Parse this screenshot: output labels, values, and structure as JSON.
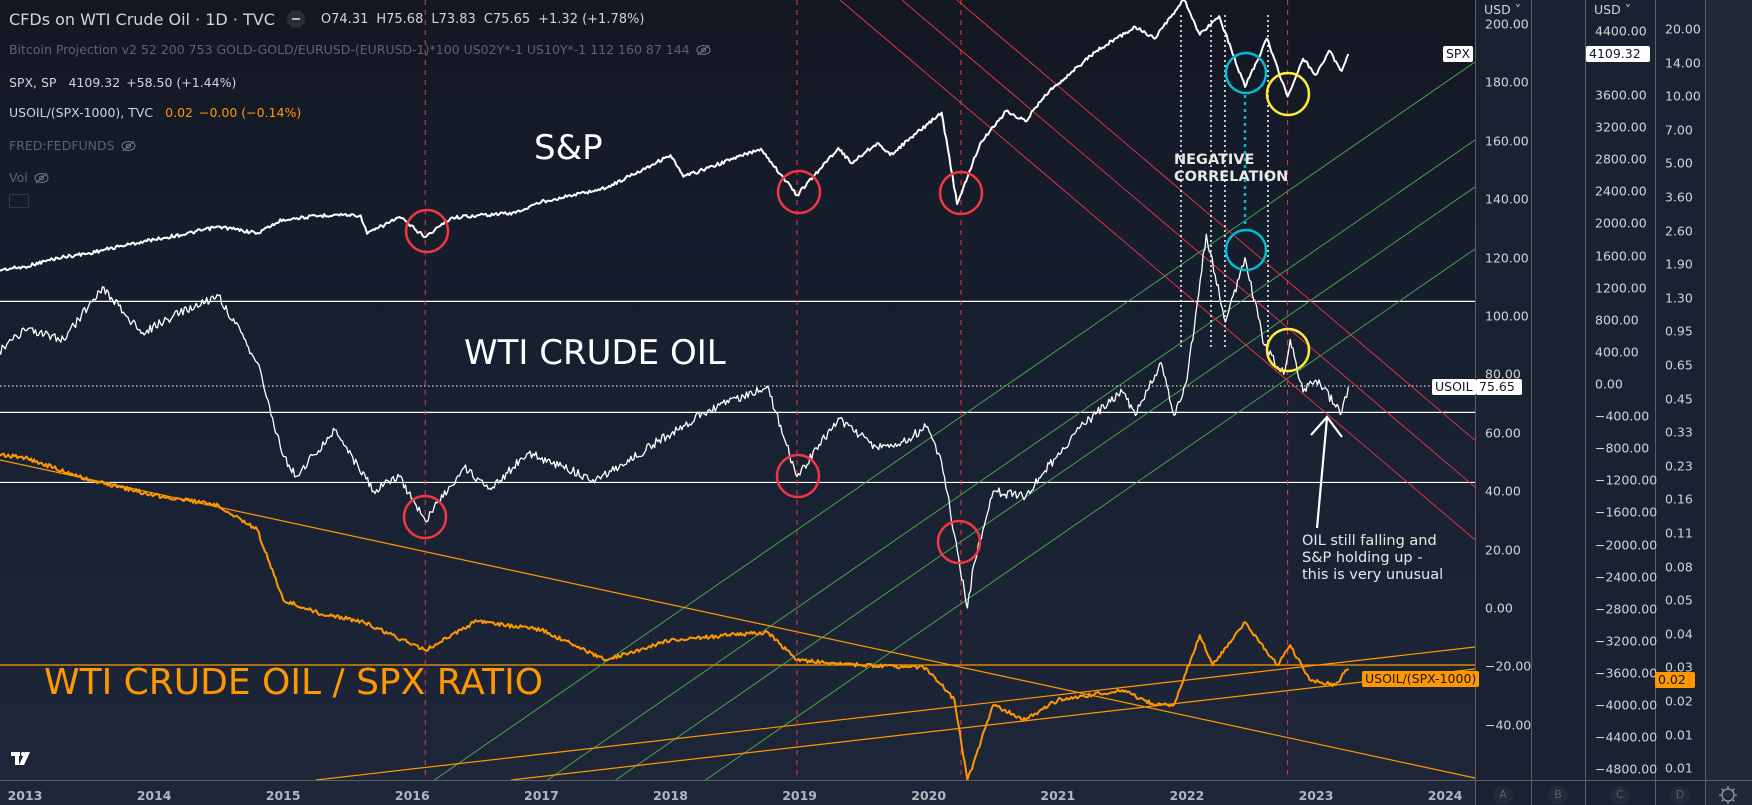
{
  "legend": {
    "title": "CFDs on WTI Crude Oil · 1D · TVC",
    "ohlc": {
      "open": "O74.31",
      "high": "H75.68",
      "low": "L73.83",
      "close": "C75.65",
      "change": "+1.32 (+1.78%)"
    },
    "indicator": "Bitcoin Projection v2 52 200 753 GOLD-GOLD/EURUSD-(EURUSD-1)*100 US02Y*-1 US10Y*-1 112 160 87 144",
    "spx": {
      "name": "SPX, SP",
      "value": "4109.32",
      "change": "+58.50 (+1.44%)"
    },
    "ratio": {
      "name": "USOIL/(SPX-1000), TVC",
      "value": "0.02",
      "change": "−0.00 (−0.14%)"
    },
    "fedfunds": "FRED:FEDFUNDS",
    "vol": "Vol"
  },
  "annotations": {
    "sp_label": "S&P",
    "oil_label": "WTI CRUDE OIL",
    "ratio_label": "WTI CRUDE OIL / SPX RATIO",
    "negative_correlation": [
      "NEGATIVE",
      "CORRELATION"
    ],
    "note": [
      "OIL still falling and",
      "S&P holding up -",
      "this is very unusual"
    ]
  },
  "price_labels": {
    "spx_tag": "SPX",
    "spx_value": "4109.32",
    "usoil_tag": "USOIL",
    "usoil_value": "75.65",
    "ratio_tag": "USOIL/(SPX-1000)",
    "ratio_value": "0.02"
  },
  "axes": {
    "currency": "USD",
    "a_ticks": [
      "200.00",
      "180.00",
      "160.00",
      "140.00",
      "120.00",
      "100.00",
      "80.00",
      "60.00",
      "40.00",
      "20.00",
      "0.00",
      "−20.00",
      "−40.00"
    ],
    "a_values": [
      200,
      180,
      160,
      140,
      120,
      100,
      80,
      60,
      40,
      20,
      0,
      -20,
      -40
    ],
    "c_ticks": [
      "4400.00",
      "3600.00",
      "3200.00",
      "2800.00",
      "2400.00",
      "2000.00",
      "1600.00",
      "1200.00",
      "800.00",
      "400.00",
      "0.00",
      "−400.00",
      "−800.00",
      "−1200.00",
      "−1600.00",
      "−2000.00",
      "−2400.00",
      "−2800.00",
      "−3200.00",
      "−3600.00",
      "−4000.00",
      "−4400.00",
      "−4800.00"
    ],
    "c_values": [
      4400,
      3600,
      3200,
      2800,
      2400,
      2000,
      1600,
      1200,
      800,
      400,
      0,
      -400,
      -800,
      -1200,
      -1600,
      -2000,
      -2400,
      -2800,
      -3200,
      -3600,
      -4000,
      -4400,
      -4800
    ],
    "d_ticks": [
      "20.00",
      "14.00",
      "10.00",
      "7.00",
      "5.00",
      "3.60",
      "2.60",
      "1.90",
      "1.30",
      "0.95",
      "0.65",
      "0.45",
      "0.33",
      "0.23",
      "0.16",
      "0.11",
      "0.08",
      "0.05",
      "0.04",
      "0.03",
      "0.02",
      "0.01",
      "0.01"
    ],
    "years": [
      "2013",
      "2014",
      "2015",
      "2016",
      "2017",
      "2018",
      "2019",
      "2020",
      "2021",
      "2022",
      "2023",
      "2024"
    ],
    "scale_letters": [
      "A",
      "B",
      "C",
      "D"
    ]
  },
  "colors": {
    "spx": "#ffffff",
    "oil": "#ffffff",
    "ratio": "#ff9800",
    "circle_red": "#f23645",
    "circle_cyan": "#00bcd4",
    "circle_yellow": "#ffeb3b",
    "trend_green": "#4caf50",
    "trend_red": "#f23645"
  },
  "chart_data": {
    "type": "line",
    "title": "CFDs on WTI Crude Oil · 1D · TVC",
    "x_range": [
      2012.8,
      2024.2
    ],
    "series": [
      {
        "name": "SPX",
        "axis": "C",
        "points": [
          [
            2012.8,
            1420
          ],
          [
            2013.0,
            1460
          ],
          [
            2013.25,
            1570
          ],
          [
            2013.5,
            1630
          ],
          [
            2013.75,
            1720
          ],
          [
            2014.0,
            1800
          ],
          [
            2014.25,
            1870
          ],
          [
            2014.5,
            1960
          ],
          [
            2014.8,
            1880
          ],
          [
            2015.0,
            2050
          ],
          [
            2015.4,
            2110
          ],
          [
            2015.6,
            2100
          ],
          [
            2015.65,
            1870
          ],
          [
            2015.9,
            2080
          ],
          [
            2016.1,
            1830
          ],
          [
            2016.3,
            2070
          ],
          [
            2016.5,
            2100
          ],
          [
            2016.8,
            2130
          ],
          [
            2017.0,
            2270
          ],
          [
            2017.5,
            2440
          ],
          [
            2018.0,
            2850
          ],
          [
            2018.1,
            2580
          ],
          [
            2018.7,
            2930
          ],
          [
            2018.98,
            2350
          ],
          [
            2019.3,
            2940
          ],
          [
            2019.4,
            2750
          ],
          [
            2019.6,
            3000
          ],
          [
            2019.7,
            2850
          ],
          [
            2020.1,
            3380
          ],
          [
            2020.22,
            2240
          ],
          [
            2020.4,
            3000
          ],
          [
            2020.6,
            3400
          ],
          [
            2020.75,
            3270
          ],
          [
            2020.9,
            3600
          ],
          [
            2021.3,
            4150
          ],
          [
            2021.6,
            4450
          ],
          [
            2021.75,
            4300
          ],
          [
            2021.98,
            4790
          ],
          [
            2022.1,
            4350
          ],
          [
            2022.25,
            4580
          ],
          [
            2022.45,
            3700
          ],
          [
            2022.62,
            4300
          ],
          [
            2022.78,
            3580
          ],
          [
            2022.9,
            4050
          ],
          [
            2023.0,
            3850
          ],
          [
            2023.1,
            4150
          ],
          [
            2023.2,
            3900
          ],
          [
            2023.25,
            4109.32
          ]
        ]
      },
      {
        "name": "USOIL",
        "axis": "A",
        "points": [
          [
            2012.8,
            88
          ],
          [
            2013.0,
            95
          ],
          [
            2013.3,
            92
          ],
          [
            2013.6,
            110
          ],
          [
            2013.9,
            94
          ],
          [
            2014.2,
            101
          ],
          [
            2014.5,
            107
          ],
          [
            2014.8,
            84
          ],
          [
            2015.0,
            52
          ],
          [
            2015.1,
            45
          ],
          [
            2015.4,
            61
          ],
          [
            2015.7,
            40
          ],
          [
            2015.9,
            45
          ],
          [
            2016.1,
            30
          ],
          [
            2016.4,
            48
          ],
          [
            2016.6,
            41
          ],
          [
            2016.9,
            53
          ],
          [
            2017.4,
            44
          ],
          [
            2017.6,
            48
          ],
          [
            2017.9,
            57
          ],
          [
            2018.3,
            68
          ],
          [
            2018.75,
            76
          ],
          [
            2018.98,
            45
          ],
          [
            2019.3,
            65
          ],
          [
            2019.6,
            55
          ],
          [
            2019.8,
            57
          ],
          [
            2019.98,
            62
          ],
          [
            2020.1,
            50
          ],
          [
            2020.2,
            25
          ],
          [
            2020.3,
            0
          ],
          [
            2020.35,
            15
          ],
          [
            2020.5,
            40
          ],
          [
            2020.75,
            38
          ],
          [
            2020.9,
            47
          ],
          [
            2021.2,
            63
          ],
          [
            2021.5,
            74
          ],
          [
            2021.6,
            66
          ],
          [
            2021.8,
            84
          ],
          [
            2021.9,
            66
          ],
          [
            2022.0,
            78
          ],
          [
            2022.15,
            128
          ],
          [
            2022.3,
            98
          ],
          [
            2022.45,
            120
          ],
          [
            2022.6,
            90
          ],
          [
            2022.75,
            80
          ],
          [
            2022.8,
            92
          ],
          [
            2022.9,
            74
          ],
          [
            2023.0,
            78
          ],
          [
            2023.2,
            67
          ],
          [
            2023.25,
            75.65
          ]
        ]
      },
      {
        "name": "USOIL/(SPX-1000)",
        "axis": "D",
        "points": [
          [
            2012.8,
            0.23
          ],
          [
            2013.0,
            0.222
          ],
          [
            2013.5,
            0.176
          ],
          [
            2014.0,
            0.15
          ],
          [
            2014.5,
            0.135
          ],
          [
            2014.8,
            0.104
          ],
          [
            2015.0,
            0.05
          ],
          [
            2015.3,
            0.043
          ],
          [
            2015.6,
            0.04
          ],
          [
            2016.1,
            0.0296
          ],
          [
            2016.5,
            0.04
          ],
          [
            2017.0,
            0.0365
          ],
          [
            2017.5,
            0.0266
          ],
          [
            2018.0,
            0.0328
          ],
          [
            2018.75,
            0.0357
          ],
          [
            2018.98,
            0.0266
          ],
          [
            2019.5,
            0.0252
          ],
          [
            2019.98,
            0.0245
          ],
          [
            2020.2,
            0.0175
          ],
          [
            2020.3,
            0.0075
          ],
          [
            2020.5,
            0.0166
          ],
          [
            2020.75,
            0.0142
          ],
          [
            2021.0,
            0.0175
          ],
          [
            2021.5,
            0.0194
          ],
          [
            2021.75,
            0.0166
          ],
          [
            2021.9,
            0.0166
          ],
          [
            2022.1,
            0.0346
          ],
          [
            2022.2,
            0.0252
          ],
          [
            2022.45,
            0.0396
          ],
          [
            2022.7,
            0.0252
          ],
          [
            2022.8,
            0.0311
          ],
          [
            2022.95,
            0.0216
          ],
          [
            2023.15,
            0.0205
          ],
          [
            2023.25,
            0.0243
          ]
        ]
      }
    ],
    "horizontal_levels_usd": [
      105,
      67,
      43
    ],
    "highlight_dates": [
      2016.1,
      2018.98,
      2020.25,
      2022.78
    ]
  }
}
